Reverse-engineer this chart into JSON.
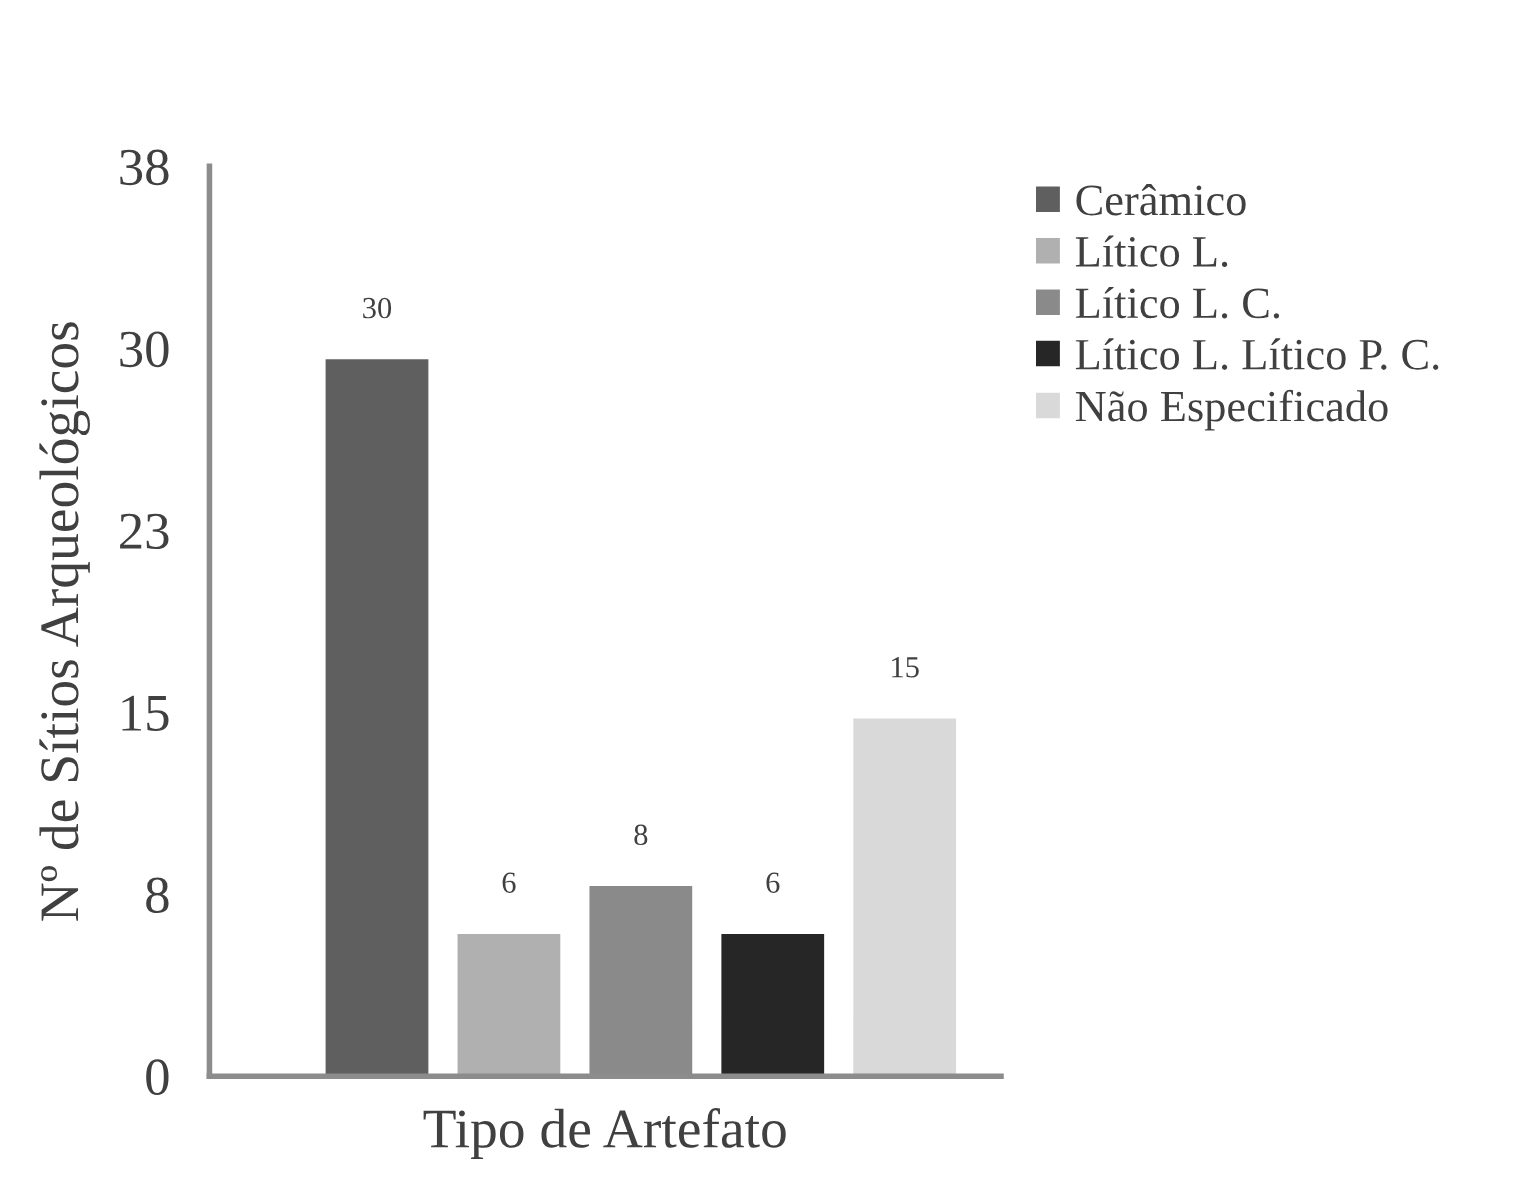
{
  "chart_data": {
    "type": "bar",
    "xlabel": "Tipo de Artefato",
    "ylabel": "Nº de Sítios Arqueológicos",
    "categories": [
      null
    ],
    "series": [
      {
        "name": "Cerâmico",
        "color": "#5f5f5f",
        "values": [
          30
        ]
      },
      {
        "name": "Lítico L.",
        "color": "#b0b0b0",
        "values": [
          6
        ]
      },
      {
        "name": "Lítico L. C.",
        "color": "#8a8a8a",
        "values": [
          8
        ]
      },
      {
        "name": "Lítico L. Lítico P. C.",
        "color": "#262626",
        "values": [
          6
        ]
      },
      {
        "name": "Não Especificado",
        "color": "#d9d9d9",
        "values": [
          15
        ]
      }
    ],
    "ylim": [
      0,
      38
    ],
    "yticks": [
      0,
      {
        "value": 7.6,
        "label": "8"
      },
      {
        "value": 15.2,
        "label": "15"
      },
      {
        "value": 22.8,
        "label": "23"
      },
      {
        "value": 30.4,
        "label": "30"
      },
      38
    ],
    "data_labels": true,
    "legend": "top right",
    "grid": false
  }
}
